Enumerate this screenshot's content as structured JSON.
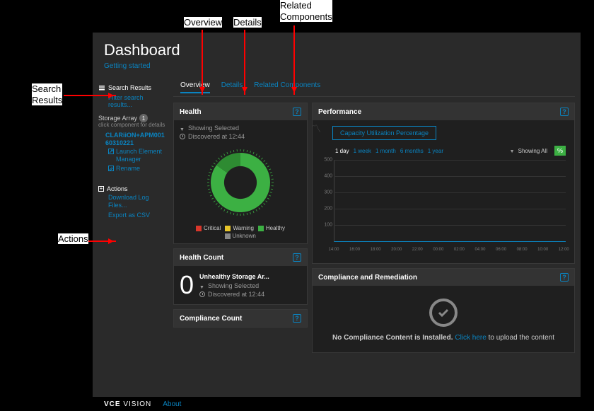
{
  "annotations": {
    "overview": "Overview",
    "details": "Details",
    "related": "Related\nComponents",
    "search": "Search\nResults",
    "actions": "Actions"
  },
  "header": {
    "title": "Dashboard",
    "getting_started": "Getting started"
  },
  "sidebar": {
    "search_results": {
      "title": "Search Results",
      "filter_link": "Filter search results..."
    },
    "storage_array": {
      "title": "Storage Array",
      "count": "1",
      "hint": "click component for details",
      "component": "CLARiiON+APM00160310221",
      "launch": "Launch Element Manager",
      "rename": "Rename"
    },
    "actions": {
      "title": "Actions",
      "download": "Download Log Files...",
      "export": "Export as CSV"
    }
  },
  "tabs": {
    "overview": "Overview",
    "details": "Details",
    "related": "Related Components"
  },
  "health": {
    "title": "Health",
    "showing": "Showing Selected",
    "discovered": "Discovered at 12:44",
    "donut": {
      "type": "donut",
      "slices": [
        {
          "label": "Healthy",
          "value": 85,
          "color": "#3cb043"
        },
        {
          "label": "Healthy2",
          "value": 15,
          "color": "#2e8b32"
        }
      ],
      "inner_radius": 0.55,
      "background": "#1f1f1f"
    },
    "legend": [
      {
        "label": "Critical",
        "color": "#d9372b"
      },
      {
        "label": "Warning",
        "color": "#e8c52a"
      },
      {
        "label": "Healthy",
        "color": "#3cb043"
      }
    ],
    "unknown_sw": "#888",
    "unknown": "Unknown"
  },
  "health_count": {
    "title": "Health Count",
    "value": "0",
    "label": "Unhealthy Storage Ar...",
    "showing": "Showing Selected",
    "discovered": "Discovered at 12:44"
  },
  "compliance_count": {
    "title": "Compliance Count"
  },
  "performance": {
    "title": "Performance",
    "metric": "Capacity Utilization Percentage",
    "ranges": [
      "1 day",
      "1 week",
      "1 month",
      "6 months",
      "1 year"
    ],
    "active_range": 0,
    "showing_all": "Showing All",
    "pill": "%",
    "chart": {
      "type": "line",
      "ylim": [
        0,
        500
      ],
      "ytick_step": 100,
      "yticks": [
        "",
        "100",
        "200",
        "300",
        "400",
        "500"
      ],
      "xticks": [
        "14:00",
        "16:00",
        "18:00",
        "20:00",
        "22:00",
        "00:00",
        "02:00",
        "04:00",
        "06:00",
        "08:00",
        "10:00",
        "12:00"
      ],
      "axis_color": "#0a84c1",
      "grid_color": "#333333",
      "background": "#1f1f1f"
    }
  },
  "compliance": {
    "title": "Compliance and Remediation",
    "text_pre": "No Compliance Content is Installed. ",
    "link": "Click here",
    "text_post": " to upload the content"
  },
  "footer": {
    "logo_a": "VCE",
    "logo_b": "VISION",
    "about": "About"
  },
  "colors": {
    "bg": "#2a2a2a",
    "panel": "#1f1f1f",
    "accent": "#0a84c1",
    "green": "#3cb043"
  }
}
